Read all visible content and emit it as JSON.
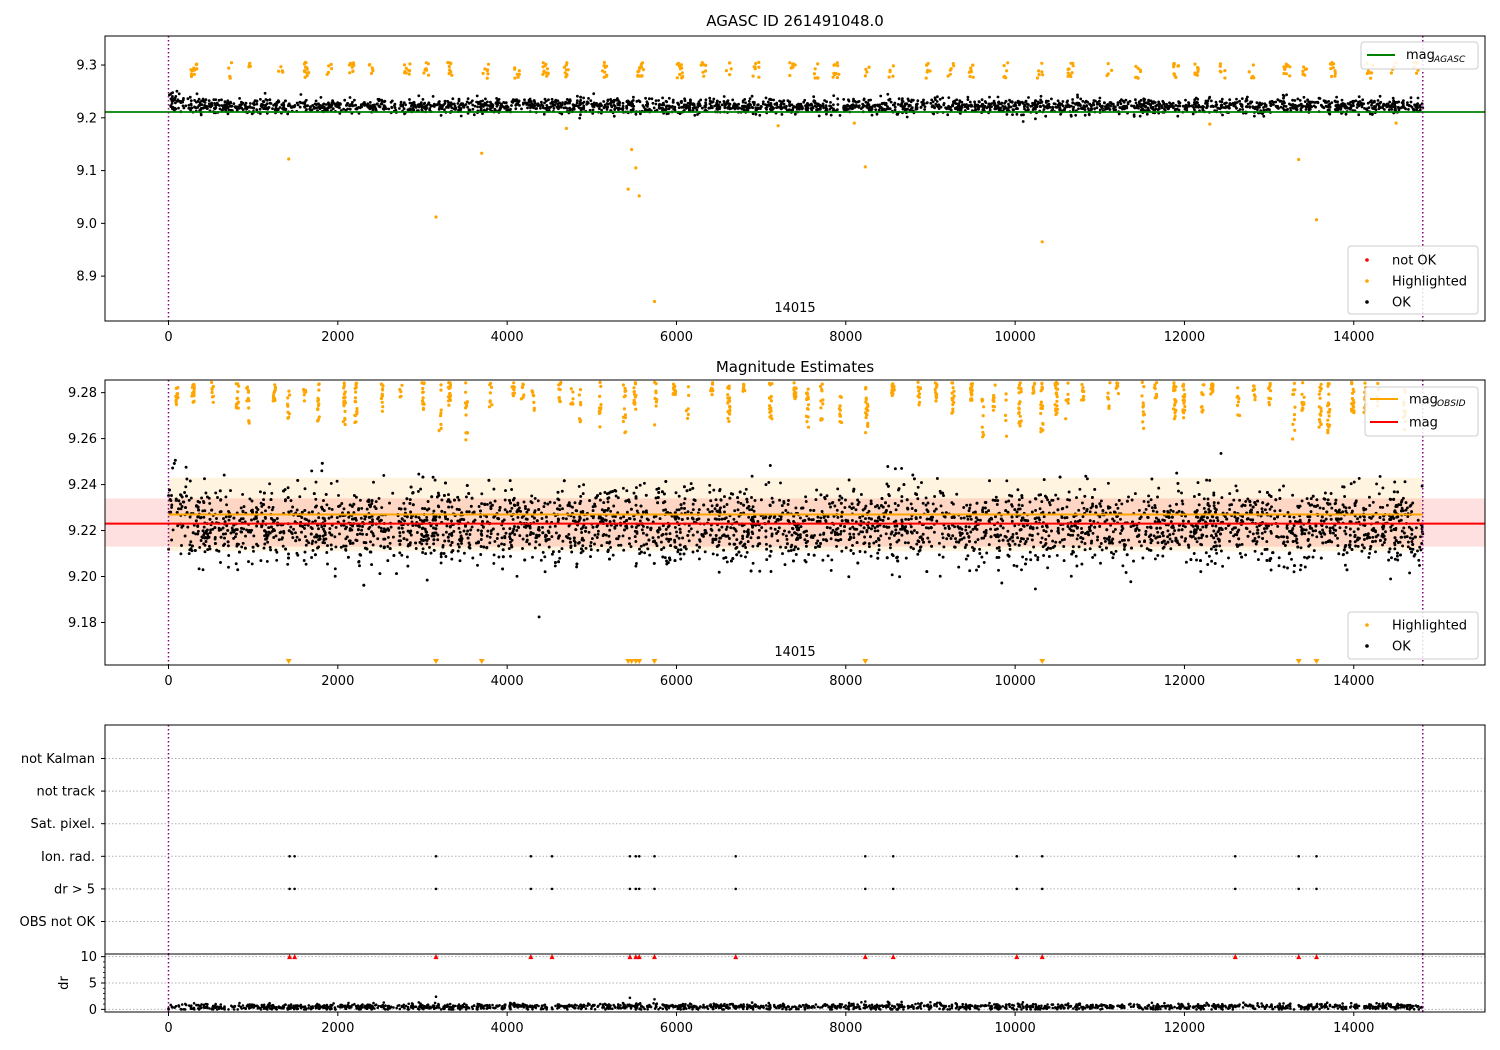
{
  "chart_data": [
    {
      "type": "scatter",
      "title": "AGASC ID 261491048.0",
      "xlim": [
        -750,
        15550
      ],
      "ylim": [
        8.815,
        9.355
      ],
      "xticks": [
        0,
        2000,
        4000,
        6000,
        8000,
        10000,
        12000,
        14000,
        16000
      ],
      "yticks": [
        8.9,
        9.0,
        9.1,
        9.2,
        9.3
      ],
      "ytick_labels": [
        "8.9",
        "9.0",
        "9.1",
        "9.2",
        "9.3"
      ],
      "vlines": [
        0,
        14815
      ],
      "hline": {
        "name": "mag_AGASC",
        "y": 9.211,
        "color": "#008000",
        "xrange": [
          -750,
          15550
        ]
      },
      "annotation": {
        "text": "14015",
        "x": 7400
      },
      "legend_upper": [
        {
          "label": "mag",
          "sub": "AGASC",
          "color": "#008000"
        }
      ],
      "legend_lower": [
        {
          "label": "not OK",
          "color": "#ff0000"
        },
        {
          "label": "Highlighted",
          "color": "#ffa500"
        },
        {
          "label": "OK",
          "color": "#000000"
        }
      ],
      "series": [
        {
          "name": "OK",
          "color": "#000000",
          "x_range": [
            0,
            14815
          ],
          "y_center": 9.222,
          "y_spread": 0.012
        },
        {
          "name": "Highlighted",
          "color": "#ffa500",
          "x": [
            1420,
            3160,
            3700,
            4700,
            5430,
            5470,
            5520,
            5560,
            5740,
            7200,
            8230,
            10320,
            13350,
            13560,
            8100,
            12300,
            14500
          ],
          "y": [
            9.122,
            9.012,
            9.133,
            9.18,
            9.065,
            9.14,
            9.105,
            9.052,
            8.852,
            9.185,
            9.107,
            8.965,
            9.121,
            9.007,
            9.19,
            9.188,
            9.19
          ]
        }
      ]
    },
    {
      "type": "scatter",
      "title": "Magnitude Estimates",
      "xlim": [
        -750,
        15550
      ],
      "ylim": [
        9.1615,
        9.2855
      ],
      "xticks": [
        0,
        2000,
        4000,
        6000,
        8000,
        10000,
        12000,
        14000,
        16000
      ],
      "yticks": [
        9.18,
        9.2,
        9.22,
        9.24,
        9.26,
        9.28
      ],
      "ytick_labels": [
        "9.18",
        "9.20",
        "9.22",
        "9.24",
        "9.26",
        "9.28"
      ],
      "vlines": [
        0,
        14815
      ],
      "lines": [
        {
          "name": "mag_OBSID",
          "y": 9.227,
          "color": "#ffa500",
          "xrange": [
            0,
            14815
          ],
          "band": [
            9.211,
            9.243
          ]
        },
        {
          "name": "mag",
          "y": 9.223,
          "color": "#ff0000",
          "xrange": [
            -750,
            15550
          ],
          "band": [
            9.213,
            9.234
          ]
        }
      ],
      "annotation": {
        "text": "14015",
        "x": 7400
      },
      "legend_upper": [
        {
          "label": "mag",
          "sub": "OBSID",
          "color": "#ffa500"
        },
        {
          "label": "mag",
          "sub": "",
          "color": "#ff0000"
        }
      ],
      "legend_lower": [
        {
          "label": "Highlighted",
          "color": "#ffa500"
        },
        {
          "label": "OK",
          "color": "#000000"
        }
      ],
      "out_of_range_markers_x": [
        1420,
        3160,
        3700,
        5430,
        5470,
        5520,
        5560,
        5740,
        8230,
        10320,
        13350,
        13560
      ],
      "series": [
        {
          "name": "OK",
          "color": "#000000",
          "x_range": [
            0,
            14815
          ],
          "y_center": 9.222,
          "y_spread": 0.011
        },
        {
          "name": "Highlighted",
          "color": "#ffa500",
          "x_range": [
            0,
            14815
          ],
          "y_range": [
            9.255,
            9.285
          ]
        }
      ]
    },
    {
      "type": "scatter",
      "title": "",
      "xlim": [
        -750,
        15550
      ],
      "categories": [
        "OBS not OK",
        "dr > 5",
        "Ion. rad.",
        "Sat. pixel.",
        "not track",
        "not Kalman"
      ],
      "vlines": [
        0,
        14815
      ],
      "flag_x": [
        1430,
        1490,
        3160,
        4280,
        4530,
        5450,
        5520,
        5560,
        5740,
        6700,
        8230,
        8560,
        10020,
        10320,
        12600,
        13350,
        13560
      ],
      "series": [
        {
          "name": "dr > 5",
          "x": [
            1430,
            1490,
            3160,
            4280,
            4530,
            5450,
            5520,
            5560,
            5740,
            6700,
            8230,
            8560,
            10020,
            10320,
            12600,
            13350,
            13560
          ]
        },
        {
          "name": "Ion. rad.",
          "x": [
            1430,
            1490,
            3160,
            4280,
            4530,
            5450,
            5520,
            5560,
            5740,
            6700,
            8230,
            8560,
            10020,
            10320,
            12600,
            13350,
            13560
          ]
        }
      ]
    },
    {
      "type": "scatter",
      "title": "",
      "ylabel": "dr",
      "xlim": [
        -750,
        15550
      ],
      "ylim": [
        -0.5,
        10.5
      ],
      "xticks": [
        0,
        2000,
        4000,
        6000,
        8000,
        10000,
        12000,
        14000,
        16000
      ],
      "yticks": [
        0,
        5,
        10
      ],
      "ytick_labels": [
        "0",
        "5",
        "10"
      ],
      "vlines": [
        0,
        14815
      ],
      "clipped_marker_y": 10,
      "clipped_marker_color": "#ff0000",
      "clipped_x": [
        1430,
        1490,
        3160,
        4280,
        4530,
        5450,
        5520,
        5560,
        5740,
        6700,
        8230,
        8560,
        10020,
        10320,
        12600,
        13350,
        13560
      ],
      "series": [
        {
          "name": "dr",
          "color": "#000000",
          "x_range": [
            0,
            14815
          ],
          "y_center": 0.5,
          "y_spread": 0.3,
          "extra_x": [
            3160,
            5450,
            5740,
            8230
          ],
          "extra_y": [
            2.4,
            2.2,
            1.9,
            1.5
          ]
        }
      ]
    }
  ]
}
